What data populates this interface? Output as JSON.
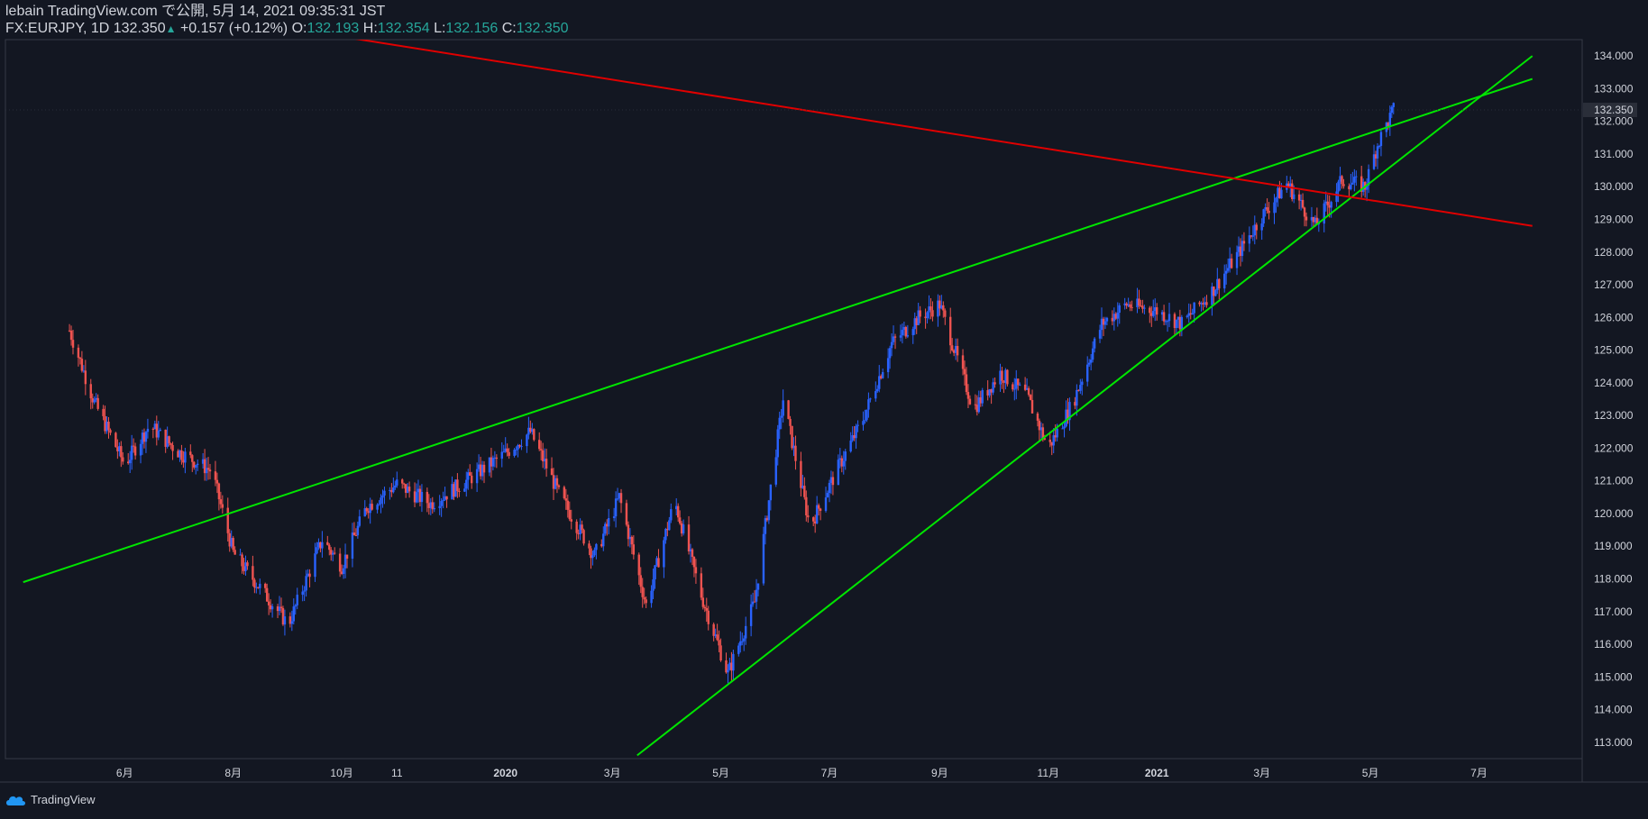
{
  "header": {
    "line1": "lebain TradingView.com で公開, 5月 14, 2021 09:35:31 JST",
    "symbol": "FX:EURJPY, 1D",
    "last": "132.350",
    "change": "+0.157 (+0.12%)",
    "o_label": "O:",
    "o_value": "132.193",
    "h_label": "H:",
    "h_value": "132.354",
    "l_label": "L:",
    "l_value": "132.156",
    "c_label": "C:",
    "c_value": "132.350"
  },
  "footer": {
    "brand": "TradingView"
  },
  "colors": {
    "background": "#131722",
    "up": "#2962ff",
    "down": "#ef5350",
    "trend_green": "#00e600",
    "trend_red": "#e00000",
    "text": "#d1d4dc"
  },
  "chart_data": {
    "type": "candlestick",
    "symbol": "FX:EURJPY",
    "interval": "1D",
    "ylim": [
      112.5,
      134.5
    ],
    "y_ticks": [
      "113.000",
      "114.000",
      "115.000",
      "116.000",
      "117.000",
      "118.000",
      "119.000",
      "120.000",
      "121.000",
      "122.000",
      "123.000",
      "124.000",
      "125.000",
      "126.000",
      "127.000",
      "128.000",
      "129.000",
      "130.000",
      "131.000",
      "132.000",
      "133.000",
      "134.000"
    ],
    "x_ticks": [
      "6月",
      "8月",
      "10月",
      "11",
      "2020",
      "3月",
      "5月",
      "7月",
      "9月",
      "11月",
      "2021",
      "3月",
      "5月",
      "7月"
    ],
    "last_price_label": "132.350",
    "close_path": [
      [
        "2019-05-01",
        125.6
      ],
      [
        "2019-05-15",
        123.4
      ],
      [
        "2019-06-01",
        121.5
      ],
      [
        "2019-06-15",
        122.7
      ],
      [
        "2019-07-01",
        121.9
      ],
      [
        "2019-07-20",
        121.3
      ],
      [
        "2019-08-01",
        118.8
      ],
      [
        "2019-08-15",
        117.8
      ],
      [
        "2019-09-01",
        116.6
      ],
      [
        "2019-09-20",
        119.2
      ],
      [
        "2019-10-01",
        118.4
      ],
      [
        "2019-10-15",
        120.2
      ],
      [
        "2019-11-01",
        120.9
      ],
      [
        "2019-11-20",
        120.3
      ],
      [
        "2019-12-10",
        121.0
      ],
      [
        "2019-12-31",
        121.8
      ],
      [
        "2020-01-15",
        122.5
      ],
      [
        "2020-01-31",
        120.6
      ],
      [
        "2020-02-20",
        118.7
      ],
      [
        "2020-03-05",
        120.5
      ],
      [
        "2020-03-20",
        117.2
      ],
      [
        "2020-04-05",
        120.4
      ],
      [
        "2020-04-20",
        117.5
      ],
      [
        "2020-05-05",
        115.1
      ],
      [
        "2020-05-20",
        117.3
      ],
      [
        "2020-06-05",
        123.5
      ],
      [
        "2020-06-20",
        119.6
      ],
      [
        "2020-07-05",
        121.3
      ],
      [
        "2020-07-20",
        122.9
      ],
      [
        "2020-08-05",
        125.2
      ],
      [
        "2020-08-20",
        126.0
      ],
      [
        "2020-09-01",
        126.4
      ],
      [
        "2020-09-20",
        123.2
      ],
      [
        "2020-10-05",
        124.3
      ],
      [
        "2020-10-20",
        123.6
      ],
      [
        "2020-11-01",
        122.0
      ],
      [
        "2020-11-15",
        123.4
      ],
      [
        "2020-12-01",
        125.8
      ],
      [
        "2020-12-15",
        126.4
      ],
      [
        "2021-01-01",
        126.2
      ],
      [
        "2021-01-15",
        125.8
      ],
      [
        "2021-02-01",
        126.8
      ],
      [
        "2021-02-15",
        127.9
      ],
      [
        "2021-03-01",
        129.1
      ],
      [
        "2021-03-15",
        130.1
      ],
      [
        "2021-03-31",
        128.8
      ],
      [
        "2021-04-15",
        130.2
      ],
      [
        "2021-04-28",
        130.0
      ],
      [
        "2021-05-05",
        131.3
      ],
      [
        "2021-05-14",
        132.35
      ]
    ],
    "trendlines": [
      {
        "color": "green",
        "from": [
          "2019-04-05",
          117.9
        ],
        "to": [
          "2021-07-31",
          133.3
        ]
      },
      {
        "color": "green",
        "from": [
          "2020-03-15",
          112.6
        ],
        "to": [
          "2021-07-31",
          134.0
        ]
      },
      {
        "color": "red",
        "from": [
          "2019-08-15",
          135.0
        ],
        "to": [
          "2021-07-31",
          128.8
        ]
      }
    ]
  }
}
